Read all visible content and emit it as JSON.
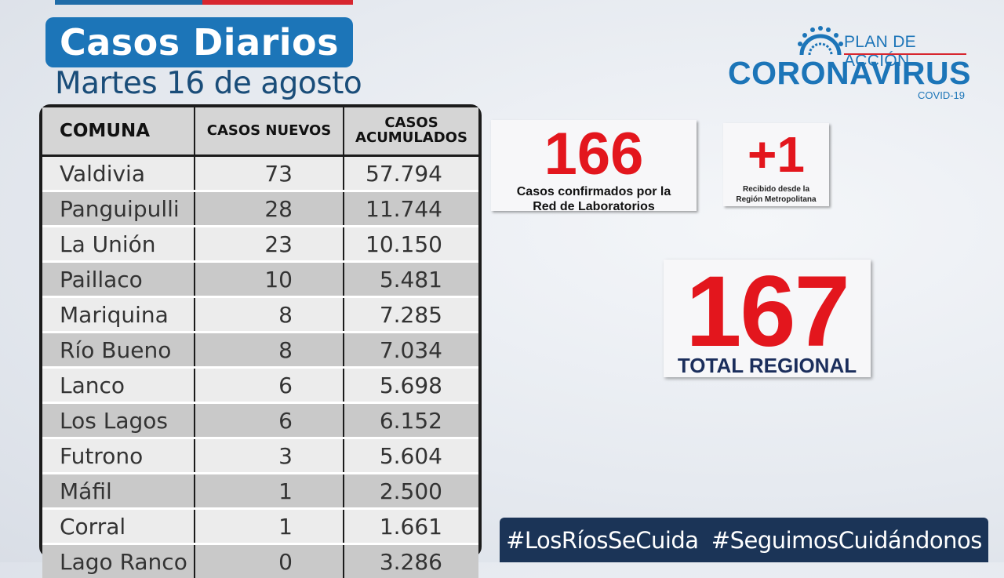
{
  "header": {
    "title": "Casos Diarios",
    "subtitle": "Martes 16 de agosto"
  },
  "logo": {
    "plan": "PLAN DE ACCIÓN",
    "brand": "CORONAVIRUS",
    "covid": "COVID-19",
    "icon": "virus-icon"
  },
  "table": {
    "headers": [
      "COMUNA",
      "CASOS NUEVOS",
      "CASOS ACUMULADOS"
    ],
    "rows": [
      {
        "comuna": "Valdivia",
        "nuevos": "73",
        "acumulados": "57.794"
      },
      {
        "comuna": "Panguipulli",
        "nuevos": "28",
        "acumulados": "11.744"
      },
      {
        "comuna": "La Unión",
        "nuevos": "23",
        "acumulados": "10.150"
      },
      {
        "comuna": "Paillaco",
        "nuevos": "10",
        "acumulados": "5.481"
      },
      {
        "comuna": "Mariquina",
        "nuevos": "8",
        "acumulados": "7.285"
      },
      {
        "comuna": "Río Bueno",
        "nuevos": "8",
        "acumulados": "7.034"
      },
      {
        "comuna": "Lanco",
        "nuevos": "6",
        "acumulados": "5.698"
      },
      {
        "comuna": "Los Lagos",
        "nuevos": "6",
        "acumulados": "6.152"
      },
      {
        "comuna": "Futrono",
        "nuevos": "3",
        "acumulados": "5.604"
      },
      {
        "comuna": "Máfil",
        "nuevos": "1",
        "acumulados": "2.500"
      },
      {
        "comuna": "Corral",
        "nuevos": "1",
        "acumulados": "1.661"
      },
      {
        "comuna": "Lago Ranco",
        "nuevos": "0",
        "acumulados": "3.286"
      }
    ]
  },
  "stats": {
    "lab": {
      "value": "166",
      "label_line1": "Casos confirmados  por la",
      "label_line2": "Red de Laboratorios"
    },
    "rm": {
      "value": "+1",
      "label_line1": "Recibido  desde la",
      "label_line2": "Región Metropolitana"
    },
    "total": {
      "value": "167",
      "label": "TOTAL REGIONAL"
    }
  },
  "hashtags": [
    "#LosRíosSeCuida",
    "#SeguimosCuidándonos"
  ],
  "colors": {
    "brand_blue": "#1c75b8",
    "accent_red": "#e3161d",
    "navy": "#1b3457"
  }
}
